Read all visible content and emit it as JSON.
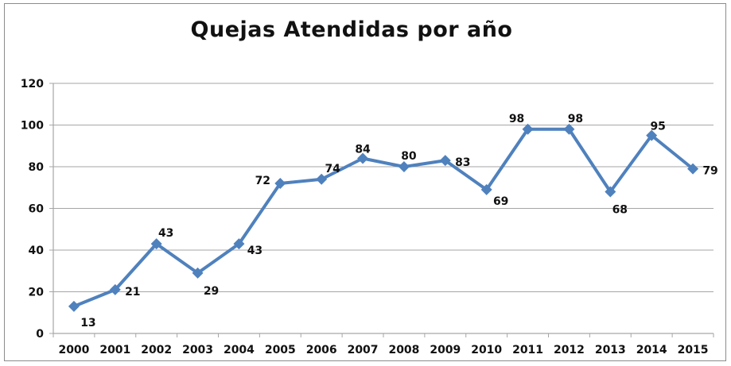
{
  "chart_data": {
    "type": "line",
    "title": "Quejas Atendidas por año",
    "xlabel": "",
    "ylabel": "",
    "categories": [
      "2000",
      "2001",
      "2002",
      "2003",
      "2004",
      "2005",
      "2006",
      "2007",
      "2008",
      "2009",
      "2010",
      "2011",
      "2012",
      "2013",
      "2014",
      "2015"
    ],
    "values": [
      13,
      21,
      43,
      29,
      43,
      72,
      74,
      84,
      80,
      83,
      69,
      98,
      98,
      68,
      95,
      79
    ],
    "ylim": [
      0,
      120
    ],
    "yticks": [
      0,
      20,
      40,
      60,
      80,
      100,
      120
    ],
    "grid": true,
    "legend": "none",
    "marker": "diamond",
    "data_labels": true,
    "colors": {
      "line": "#4f81bd",
      "grid": "#a6a6a6",
      "axis": "#a6a6a6"
    }
  }
}
